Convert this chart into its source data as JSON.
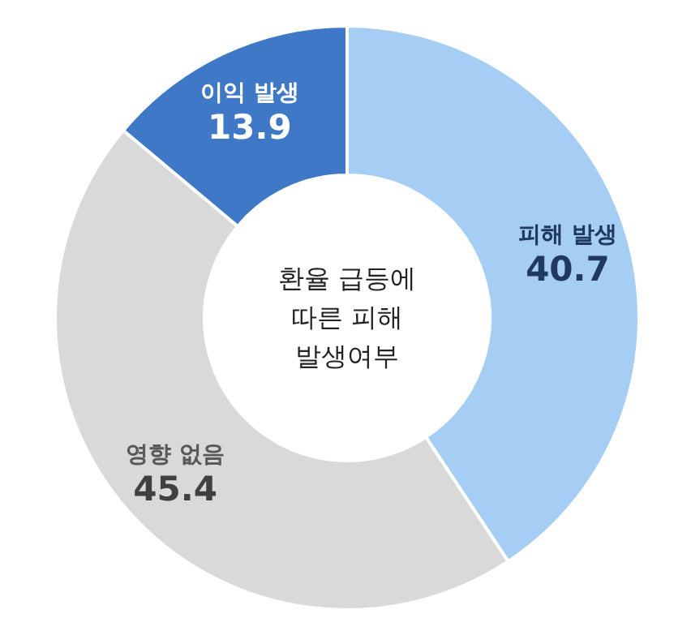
{
  "chart_data": {
    "type": "donut",
    "title": "환율 급등에 따른 피해 발생여부",
    "categories": [
      "피해 발생",
      "영향 없음",
      "이익 발생"
    ],
    "values": [
      40.7,
      45.4,
      13.9
    ],
    "colors": [
      "#a6cdf3",
      "#d9d9d9",
      "#3e78c6"
    ],
    "data_labels": true
  }
}
